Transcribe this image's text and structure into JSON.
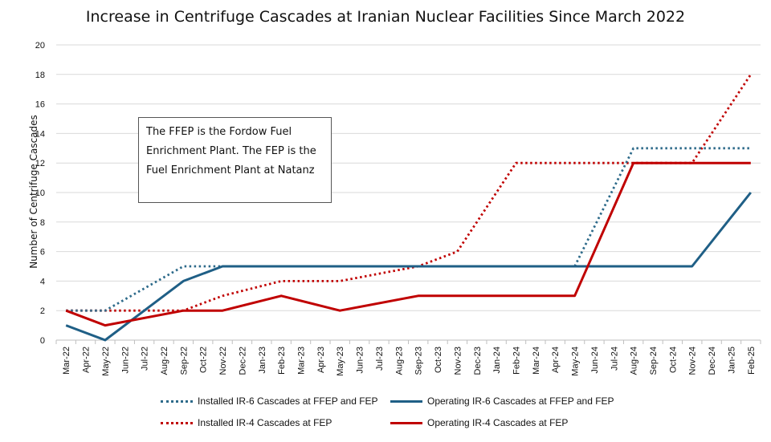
{
  "chart_data": {
    "type": "line",
    "title": "Increase in Centrifuge Cascades at Iranian Nuclear Facilities Since March 2022",
    "ylabel": "Number of Centrifuge Cascades",
    "xlabel": "",
    "ylim": [
      0,
      20
    ],
    "yticks": [
      0,
      2,
      4,
      6,
      8,
      10,
      12,
      14,
      16,
      18,
      20
    ],
    "grid": "horizontal",
    "legend_position": "bottom",
    "categories": [
      "Mar-22",
      "Apr-22",
      "May-22",
      "Jun-22",
      "Jul-22",
      "Aug-22",
      "Sep-22",
      "Oct-22",
      "Nov-22",
      "Dec-22",
      "Jan-23",
      "Feb-23",
      "Mar-23",
      "Apr-23",
      "May-23",
      "Jun-23",
      "Jul-23",
      "Aug-23",
      "Sep-23",
      "Oct-23",
      "Nov-23",
      "Dec-23",
      "Jan-24",
      "Feb-24",
      "Mar-24",
      "Apr-24",
      "May-24",
      "Jun-24",
      "Jul-24",
      "Aug-24",
      "Sep-24",
      "Oct-24",
      "Nov-24",
      "Dec-24",
      "Jan-25",
      "Feb-25"
    ],
    "series": [
      {
        "name": "Installed IR-6 Cascades at FFEP and FEP",
        "style": "dotted",
        "color": "#2d6a8a",
        "points": [
          [
            0,
            2
          ],
          [
            2,
            2
          ],
          [
            6,
            5
          ],
          [
            8,
            5
          ],
          [
            26,
            5
          ],
          [
            29,
            13
          ],
          [
            35,
            13
          ]
        ]
      },
      {
        "name": "Operating IR-6 Cascades at FFEP and FEP",
        "style": "solid",
        "color": "#1f5f86",
        "points": [
          [
            0,
            1
          ],
          [
            2,
            0
          ],
          [
            6,
            4
          ],
          [
            8,
            5
          ],
          [
            32,
            5
          ],
          [
            35,
            10
          ]
        ]
      },
      {
        "name": "Installed IR-4 Cascades at FEP",
        "style": "dotted",
        "color": "#c00000",
        "points": [
          [
            0,
            2
          ],
          [
            6,
            2
          ],
          [
            8,
            3
          ],
          [
            11,
            4
          ],
          [
            14,
            4
          ],
          [
            18,
            5
          ],
          [
            20,
            6
          ],
          [
            23,
            12
          ],
          [
            32,
            12
          ],
          [
            35,
            18
          ]
        ]
      },
      {
        "name": "Operating IR-4 Cascades at FEP",
        "style": "solid",
        "color": "#c00000",
        "points": [
          [
            0,
            2
          ],
          [
            2,
            1
          ],
          [
            6,
            2
          ],
          [
            8,
            2
          ],
          [
            11,
            3
          ],
          [
            14,
            2
          ],
          [
            18,
            3
          ],
          [
            26,
            3
          ],
          [
            29,
            12
          ],
          [
            35,
            12
          ]
        ]
      }
    ],
    "annotation": "The FFEP is the Fordow Fuel Enrichment Plant. The FEP is the Fuel Enrichment Plant at Natanz"
  }
}
